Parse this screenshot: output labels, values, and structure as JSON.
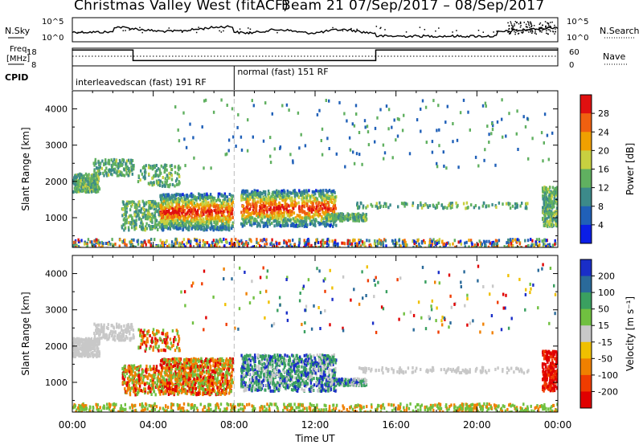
{
  "title": {
    "left": "Christmas Valley West (fitACF)",
    "right": "Beam 21  07/Sep/2017 – 08/Sep/2017"
  },
  "labels": {
    "nsky": "N.Sky",
    "nsearch": "N.Search",
    "freq": "Freq.",
    "freq_unit": "[MHz]",
    "nave": "Nave",
    "cpid": "CPID"
  },
  "top_scales": {
    "noise_left": [
      "10^5",
      "10^0"
    ],
    "noise_right": [
      "10^5",
      "10^0"
    ],
    "freq_left": [
      "18",
      "8"
    ],
    "nave_right": [
      "60",
      "0"
    ]
  },
  "cpid": [
    {
      "label": "interleavedscan (fast) 191 RF",
      "start_hour": 0
    },
    {
      "label": "normal (fast) 151 RF",
      "start_hour": 8
    }
  ],
  "chart_data": [
    {
      "type": "heatmap",
      "panel": "power",
      "ylabel": "Slant Range [km]",
      "xlabel": "",
      "xlim": [
        0,
        24
      ],
      "ylim": [
        180,
        4500
      ],
      "yticks": [
        1000,
        2000,
        3000,
        4000
      ],
      "colorbar": {
        "label": "Power [dB]",
        "ticks": [
          "4",
          "8",
          "12",
          "16",
          "20",
          "24",
          "28"
        ],
        "colors": [
          "#0b1ee6",
          "#2060b8",
          "#3c8a8a",
          "#60b060",
          "#c8d040",
          "#f0a000",
          "#f06010",
          "#e01010"
        ]
      }
    },
    {
      "type": "heatmap",
      "panel": "velocity",
      "ylabel": "Slant Range [km]",
      "xlabel": "Time UT",
      "xlim": [
        0,
        24
      ],
      "ylim": [
        180,
        4500
      ],
      "yticks": [
        1000,
        2000,
        3000,
        4000
      ],
      "xticks": [
        "00:00",
        "04:00",
        "08:00",
        "12:00",
        "16:00",
        "20:00",
        "00:00"
      ],
      "colorbar": {
        "label": "Velocity [m s⁻¹]",
        "ticks": [
          "200",
          "100",
          "50",
          "15",
          "-15",
          "-50",
          "-100",
          "-200"
        ],
        "colors": [
          "#1a2ec8",
          "#2a6a9a",
          "#3aa060",
          "#70c040",
          "#c8c8c8",
          "#f0c000",
          "#f08000",
          "#f03c00",
          "#e00000"
        ]
      }
    }
  ],
  "colors": {
    "axis": "#000000",
    "cpid_divider": "#bbbbbb"
  }
}
